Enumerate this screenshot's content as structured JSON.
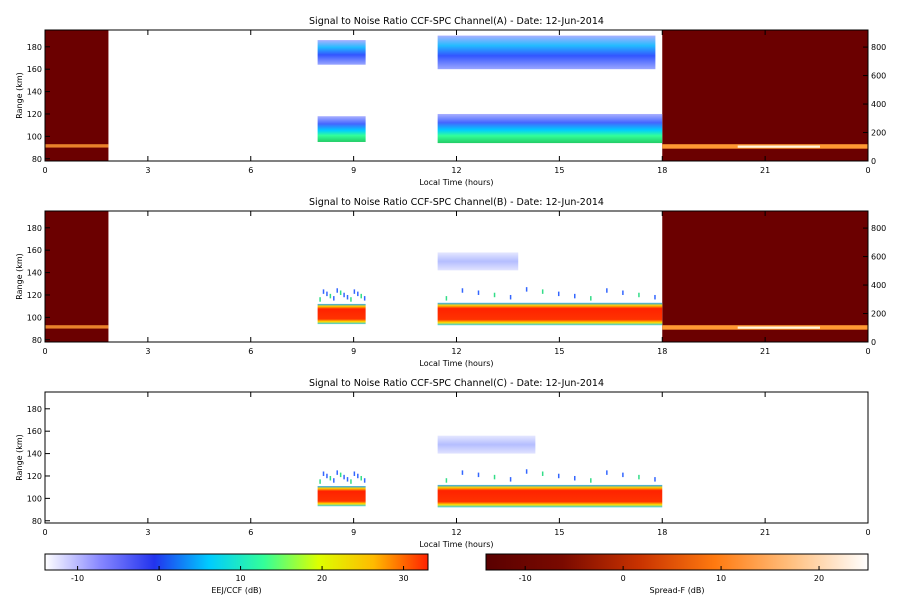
{
  "chart_data": [
    {
      "type": "heatmap",
      "title": "Signal to Noise Ratio CCF-SPC Channel(A) - Date: 12-Jun-2014",
      "xlabel": "Local Time (hours)",
      "ylabel": "Range (km)",
      "xlim": [
        0,
        24
      ],
      "ylim": [
        78,
        195
      ],
      "xticks": [
        "0",
        "3",
        "6",
        "9",
        "12",
        "15",
        "18",
        "21",
        "0"
      ],
      "yticks": [
        80,
        100,
        120,
        140,
        160,
        180
      ],
      "right_axis": {
        "ylim": [
          0,
          920
        ],
        "yticks": [
          0,
          200,
          400,
          600,
          800
        ]
      },
      "spread_f_blocks": [
        {
          "x": [
            0,
            1.85
          ],
          "layer_range": [
            90,
            93
          ],
          "layer_snr": 6
        },
        {
          "x": [
            18,
            24
          ],
          "layer_range": [
            89,
            93
          ],
          "layer_snr": 18
        }
      ],
      "eej_blocks": [
        {
          "x": [
            7.95,
            9.35
          ],
          "range": [
            95,
            118
          ],
          "peak_snr": 14
        },
        {
          "x": [
            7.95,
            9.35
          ],
          "range": [
            164,
            186
          ],
          "peak_snr": -5
        },
        {
          "x": [
            11.45,
            18
          ],
          "range": [
            94,
            120
          ],
          "peak_snr": 16
        },
        {
          "x": [
            11.45,
            17.8
          ],
          "range": [
            160,
            190
          ],
          "peak_snr": -1
        }
      ]
    },
    {
      "type": "heatmap",
      "title": "Signal to Noise Ratio CCF-SPC Channel(B) - Date: 12-Jun-2014",
      "xlabel": "Local Time (hours)",
      "ylabel": "Range (km)",
      "xlim": [
        0,
        24
      ],
      "ylim": [
        78,
        195
      ],
      "xticks": [
        "0",
        "3",
        "6",
        "9",
        "12",
        "15",
        "18",
        "21",
        "0"
      ],
      "yticks": [
        80,
        100,
        120,
        140,
        160,
        180
      ],
      "right_axis": {
        "ylim": [
          0,
          920
        ],
        "yticks": [
          0,
          200,
          400,
          600,
          800
        ]
      },
      "spread_f_blocks": [
        {
          "x": [
            0,
            1.85
          ],
          "layer_range": [
            90,
            93
          ],
          "layer_snr": 6
        },
        {
          "x": [
            18,
            24
          ],
          "layer_range": [
            89,
            93
          ],
          "layer_snr": 18
        }
      ],
      "eej_blocks": [
        {
          "x": [
            7.95,
            9.35
          ],
          "range": [
            94,
            112
          ],
          "peak_snr": 30
        },
        {
          "x": [
            11.45,
            18
          ],
          "range": [
            93,
            113
          ],
          "peak_snr": 30
        },
        {
          "x": [
            11.45,
            13.8
          ],
          "range": [
            142,
            158
          ],
          "peak_snr": -8
        }
      ]
    },
    {
      "type": "heatmap",
      "title": "Signal to Noise Ratio CCF-SPC Channel(C) - Date: 12-Jun-2014",
      "xlabel": "Local Time (hours)",
      "ylabel": "Range (km)",
      "xlim": [
        0,
        24
      ],
      "ylim": [
        78,
        195
      ],
      "xticks": [
        "0",
        "3",
        "6",
        "9",
        "12",
        "15",
        "18",
        "21",
        "0"
      ],
      "yticks": [
        80,
        100,
        120,
        140,
        160,
        180
      ],
      "spread_f_blocks": [],
      "eej_blocks": [
        {
          "x": [
            7.95,
            9.35
          ],
          "range": [
            93,
            111
          ],
          "peak_snr": 30
        },
        {
          "x": [
            11.45,
            18
          ],
          "range": [
            92,
            112
          ],
          "peak_snr": 30
        },
        {
          "x": [
            11.45,
            14.3
          ],
          "range": [
            140,
            156
          ],
          "peak_snr": -8
        }
      ]
    }
  ],
  "colorbars": [
    {
      "label": "EEJ/CCF (dB)",
      "range": [
        -14,
        33
      ],
      "ticks": [
        -10,
        0,
        10,
        20,
        30
      ],
      "colors": [
        "#ffffff",
        "#8888ff",
        "#2233ee",
        "#00ccff",
        "#33ff99",
        "#ddff00",
        "#ffbb00",
        "#ff2200"
      ]
    },
    {
      "label": "Spread-F (dB)",
      "range": [
        -14,
        25
      ],
      "ticks": [
        -10,
        0,
        10,
        20
      ],
      "colors": [
        "#5a0000",
        "#7a0a00",
        "#c83200",
        "#ff7a10",
        "#ffc080",
        "#ffffff"
      ]
    }
  ],
  "colors": {
    "spread_f_background": "#6b0000",
    "spread_f_layer": "#ff9933"
  }
}
